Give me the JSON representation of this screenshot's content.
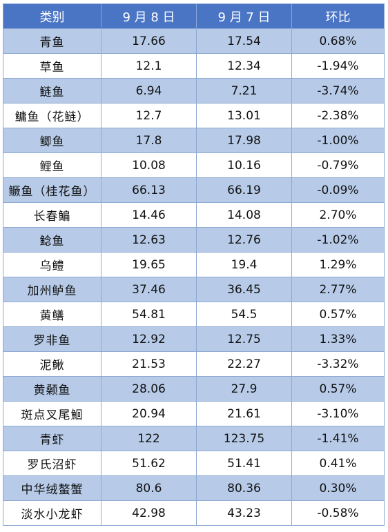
{
  "header": {
    "category": "类别",
    "sep8": "9 月 8 日",
    "sep7": "9 月 7 日",
    "change": "环比"
  },
  "rows": [
    {
      "name": "青鱼",
      "sep8": "17.66",
      "sep7": "17.54",
      "change": "0.68%"
    },
    {
      "name": "草鱼",
      "sep8": "12.1",
      "sep7": "12.34",
      "change": "-1.94%"
    },
    {
      "name": "鲢鱼",
      "sep8": "6.94",
      "sep7": "7.21",
      "change": "-3.74%"
    },
    {
      "name": "鳙鱼（花鲢）",
      "sep8": "12.7",
      "sep7": "13.01",
      "change": "-2.38%"
    },
    {
      "name": "鲫鱼",
      "sep8": "17.8",
      "sep7": "17.98",
      "change": "-1.00%"
    },
    {
      "name": "鲤鱼",
      "sep8": "10.08",
      "sep7": "10.16",
      "change": "-0.79%"
    },
    {
      "name": "鳜鱼（桂花鱼）",
      "sep8": "66.13",
      "sep7": "66.19",
      "change": "-0.09%"
    },
    {
      "name": "长春鳊",
      "sep8": "14.46",
      "sep7": "14.08",
      "change": "2.70%"
    },
    {
      "name": "鲶鱼",
      "sep8": "12.63",
      "sep7": "12.76",
      "change": "-1.02%"
    },
    {
      "name": "乌鳢",
      "sep8": "19.65",
      "sep7": "19.4",
      "change": "1.29%"
    },
    {
      "name": "加州鲈鱼",
      "sep8": "37.46",
      "sep7": "36.45",
      "change": "2.77%"
    },
    {
      "name": "黄鳝",
      "sep8": "54.81",
      "sep7": "54.5",
      "change": "0.57%"
    },
    {
      "name": "罗非鱼",
      "sep8": "12.92",
      "sep7": "12.75",
      "change": "1.33%"
    },
    {
      "name": "泥鳅",
      "sep8": "21.53",
      "sep7": "22.27",
      "change": "-3.32%"
    },
    {
      "name": "黄颡鱼",
      "sep8": "28.06",
      "sep7": "27.9",
      "change": "0.57%"
    },
    {
      "name": "斑点叉尾鮰",
      "sep8": "20.94",
      "sep7": "21.61",
      "change": "-3.10%"
    },
    {
      "name": "青虾",
      "sep8": "122",
      "sep7": "123.75",
      "change": "-1.41%"
    },
    {
      "name": "罗氏沼虾",
      "sep8": "51.62",
      "sep7": "51.41",
      "change": "0.41%"
    },
    {
      "name": "中华绒螯蟹",
      "sep8": "80.6",
      "sep7": "80.36",
      "change": "0.30%"
    },
    {
      "name": "淡水小龙虾",
      "sep8": "42.98",
      "sep7": "43.23",
      "change": "-0.58%"
    }
  ]
}
